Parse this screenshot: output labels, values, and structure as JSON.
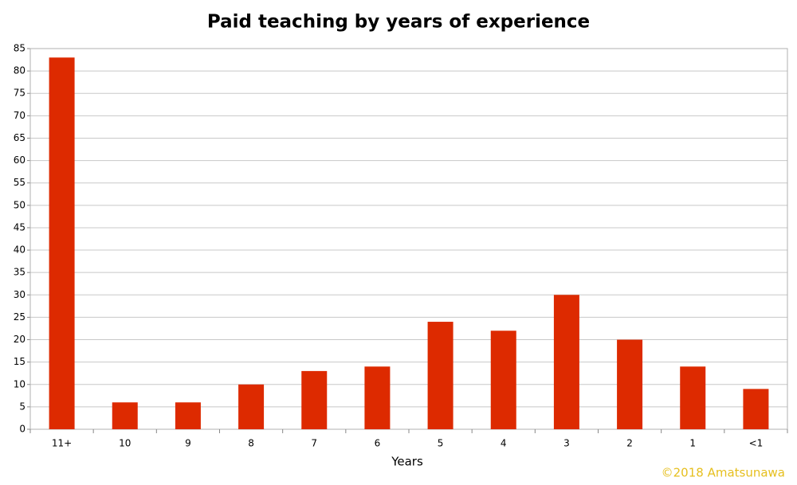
{
  "chart_data": {
    "type": "bar",
    "title": "Paid teaching by years of experience",
    "x_label": "Years",
    "annotation": "©2018 Amatsunawa",
    "categories": [
      "11+",
      "10",
      "9",
      "8",
      "7",
      "6",
      "5",
      "4",
      "3",
      "2",
      "1",
      "<1"
    ],
    "values": [
      83,
      6,
      6,
      10,
      13,
      14,
      24,
      22,
      30,
      20,
      14,
      9
    ],
    "color": "#dd2a00",
    "ylim": [
      0,
      85
    ],
    "yticks": [
      0,
      5,
      10,
      15,
      20,
      25,
      30,
      35,
      40,
      45,
      50,
      55,
      60,
      65,
      70,
      75,
      80,
      85
    ],
    "grid": true
  }
}
